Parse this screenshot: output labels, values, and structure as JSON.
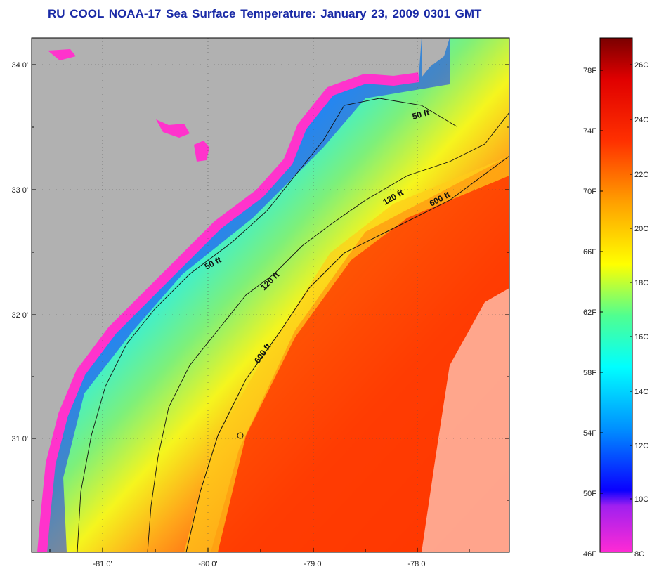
{
  "title": "RU COOL  NOAA-17  Sea Surface Temperature:  January 23, 2009 0301 GMT",
  "map": {
    "lat_ticks": [
      "34 0'",
      "33 0'",
      "32 0'",
      "31 0'"
    ],
    "lon_ticks": [
      "-81 0'",
      "-80 0'",
      "-79 0'",
      "-78 0'"
    ],
    "isobaths": [
      {
        "label": "50 ft",
        "depth": "50"
      },
      {
        "label": "50 ft",
        "depth": "50"
      },
      {
        "label": "120 ft",
        "depth": "120"
      },
      {
        "label": "120 ft",
        "depth": "120"
      },
      {
        "label": "600 ft",
        "depth": "600"
      },
      {
        "label": "600 ft",
        "depth": "600"
      }
    ],
    "colors": {
      "land": "#b1b1b1",
      "cold": "#ff3cc8",
      "warm": "#ff2a00",
      "clouds": "#ffffff"
    }
  },
  "colorbar": {
    "fahrenheit": [
      "78F",
      "74F",
      "70F",
      "66F",
      "62F",
      "58F",
      "54F",
      "50F",
      "46F"
    ],
    "celsius": [
      "26C",
      "24C",
      "22C",
      "20C",
      "18C",
      "16C",
      "14C",
      "12C",
      "10C",
      "8C"
    ]
  }
}
